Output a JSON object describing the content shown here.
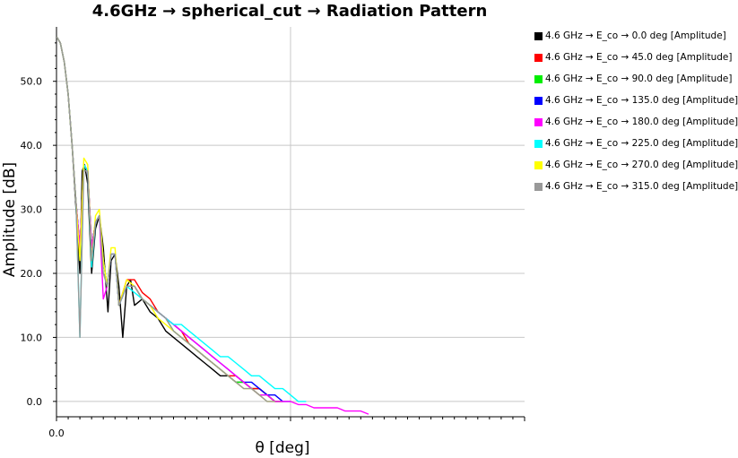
{
  "chart_data": {
    "type": "line",
    "title": "4.6GHz → spherical_cut → Radiation Pattern",
    "xlabel": "θ [deg]",
    "ylabel": "Amplitude [dB]",
    "x_ticks": [
      "0.0"
    ],
    "y_ticks": [
      "0.0",
      "10.0",
      "20.0",
      "30.0",
      "40.0",
      "50.0"
    ],
    "y_tick_values": [
      0,
      10,
      20,
      30,
      40,
      50
    ],
    "ylim": [
      -2.4,
      58.5
    ],
    "xlim": [
      0,
      60
    ],
    "grid": true,
    "legend_position": "right",
    "series": [
      {
        "name": "4.6 GHz → E_co → 0.0 deg [Amplitude]",
        "color": "#000000",
        "x": [
          0,
          0.5,
          1,
          1.5,
          2,
          2.5,
          3,
          3.3,
          3.6,
          4,
          4.5,
          5,
          5.5,
          6,
          6.6,
          7,
          7.5,
          8,
          8.5,
          9,
          9.5,
          10,
          11,
          12,
          13,
          14,
          15,
          16,
          17,
          18,
          19,
          20,
          21,
          22,
          23,
          24,
          25,
          26,
          27,
          28
        ],
        "y": [
          57,
          56,
          53,
          48,
          40,
          30,
          20,
          36,
          37,
          34,
          20,
          27,
          29,
          24,
          14,
          22,
          23,
          18,
          10,
          18,
          19,
          15,
          16,
          14,
          13,
          11,
          10,
          9,
          8,
          7,
          6,
          5,
          4,
          4,
          3,
          3,
          2,
          2,
          1,
          0
        ]
      },
      {
        "name": "4.6 GHz → E_co → 45.0 deg [Amplitude]",
        "color": "#ff0000",
        "x": [
          0,
          0.5,
          1,
          1.5,
          2,
          2.5,
          3,
          3.5,
          4,
          4.5,
          5,
          5.5,
          6,
          6.5,
          7,
          7.5,
          8,
          9,
          10,
          11,
          12,
          13,
          14,
          15,
          16,
          17,
          18,
          19,
          20,
          21,
          22,
          23,
          24,
          25,
          26,
          27,
          28,
          29
        ],
        "y": [
          57,
          56,
          53,
          48,
          40,
          31,
          24,
          37,
          36,
          24,
          28,
          29,
          22,
          18,
          23,
          23,
          15,
          19,
          19,
          17,
          16,
          14,
          13,
          12,
          11,
          9,
          8,
          7,
          6,
          5,
          4,
          4,
          3,
          2,
          2,
          1,
          0,
          0
        ]
      },
      {
        "name": "4.6 GHz → E_co → 90.0 deg [Amplitude]",
        "color": "#00ee00",
        "x": [
          0,
          0.5,
          1,
          1.5,
          2,
          2.5,
          3,
          3.5,
          4,
          4.5,
          5,
          5.5,
          6,
          6.5,
          7,
          7.5,
          8,
          9,
          10,
          11,
          12,
          13,
          14,
          15,
          16,
          17,
          18,
          19,
          20,
          21,
          22,
          23,
          24,
          25,
          26,
          27,
          28,
          29
        ],
        "y": [
          57,
          56,
          53,
          48,
          40,
          31,
          24,
          37,
          36,
          24,
          28,
          29,
          22,
          18,
          23,
          23,
          15,
          18,
          18,
          16,
          15,
          14,
          13,
          11,
          10,
          9,
          8,
          7,
          6,
          5,
          4,
          3,
          3,
          2,
          1,
          1,
          0,
          0
        ]
      },
      {
        "name": "4.6 GHz → E_co → 135.0 deg [Amplitude]",
        "color": "#0000ff",
        "x": [
          0,
          0.5,
          1,
          1.5,
          2,
          2.5,
          3,
          3.5,
          4,
          4.5,
          5,
          5.5,
          6,
          6.5,
          7,
          7.5,
          8,
          9,
          10,
          11,
          12,
          13,
          14,
          15,
          16,
          17,
          18,
          19,
          20,
          21,
          22,
          23,
          24,
          25,
          26,
          27,
          28,
          29,
          30
        ],
        "y": [
          57,
          56,
          53,
          48,
          40,
          31,
          24,
          37,
          36,
          24,
          28,
          29,
          22,
          18,
          23,
          23,
          15,
          18,
          18,
          16,
          15,
          14,
          13,
          12,
          11,
          10,
          9,
          8,
          7,
          6,
          5,
          4,
          3,
          3,
          2,
          1,
          1,
          0,
          0
        ]
      },
      {
        "name": "4.6 GHz → E_co → 180.0 deg [Amplitude]",
        "color": "#ff00ff",
        "x": [
          0,
          0.5,
          1,
          1.5,
          2,
          2.5,
          3,
          3.5,
          4,
          4.5,
          5,
          5.5,
          6,
          6.5,
          7,
          7.5,
          8,
          9,
          10,
          11,
          12,
          13,
          14,
          15,
          16,
          17,
          18,
          19,
          20,
          21,
          22,
          23,
          24,
          25,
          26,
          27,
          28,
          29,
          30,
          31,
          32,
          33,
          34,
          35,
          36,
          37,
          38,
          39,
          40
        ],
        "y": [
          57,
          56,
          53,
          48,
          40,
          31,
          24,
          37,
          36,
          24,
          28,
          29,
          16,
          18,
          23,
          23,
          15,
          18,
          18,
          16,
          15,
          14,
          13,
          12,
          11,
          10,
          9,
          8,
          7,
          6,
          5,
          4,
          3,
          2,
          1,
          1,
          0,
          0,
          0,
          -0.5,
          -0.5,
          -1,
          -1,
          -1,
          -1,
          -1.5,
          -1.5,
          -1.5,
          -2
        ]
      },
      {
        "name": "4.6 GHz → E_co → 225.0 deg [Amplitude]",
        "color": "#00ffff",
        "x": [
          0,
          0.5,
          1,
          1.5,
          2,
          2.5,
          3,
          3.5,
          4,
          4.5,
          5,
          5.5,
          6,
          6.5,
          7,
          7.5,
          8,
          9,
          10,
          11,
          12,
          13,
          14,
          15,
          16,
          17,
          18,
          19,
          20,
          21,
          22,
          23,
          24,
          25,
          26,
          27,
          28,
          29,
          30,
          31,
          32
        ],
        "y": [
          57,
          56,
          53,
          48,
          40,
          31,
          10,
          37,
          36,
          21,
          28,
          29,
          22,
          18,
          23,
          23,
          15,
          18,
          17,
          16,
          15,
          14,
          13,
          12,
          12,
          11,
          10,
          9,
          8,
          7,
          7,
          6,
          5,
          4,
          4,
          3,
          2,
          2,
          1,
          0,
          0
        ]
      },
      {
        "name": "4.6 GHz → E_co → 270.0 deg [Amplitude]",
        "color": "#ffff00",
        "x": [
          0,
          0.5,
          1,
          1.5,
          2,
          2.5,
          3,
          3.5,
          4,
          4.5,
          5,
          5.5,
          6,
          6.5,
          7,
          7.5,
          8,
          9,
          10,
          11,
          12,
          13,
          14,
          15,
          16,
          17,
          18,
          19,
          20,
          21,
          22,
          23,
          24,
          25,
          26,
          27,
          28
        ],
        "y": [
          57,
          56,
          53,
          48,
          40,
          31,
          22,
          38,
          37,
          22,
          29,
          30,
          22,
          18,
          24,
          24,
          15,
          19,
          18,
          16,
          15,
          13,
          12,
          11,
          10,
          9,
          8,
          7,
          6,
          5,
          4,
          3,
          2,
          2,
          1,
          0,
          0
        ]
      },
      {
        "name": "4.6 GHz → E_co → 315.0 deg [Amplitude]",
        "color": "#999999",
        "x": [
          0,
          0.5,
          1,
          1.5,
          2,
          2.5,
          3,
          3.5,
          4,
          4.5,
          5,
          5.5,
          6,
          6.5,
          7,
          7.5,
          8,
          9,
          10,
          11,
          12,
          13,
          14,
          15,
          16,
          17,
          18,
          19,
          20,
          21,
          22,
          23,
          24,
          25,
          26,
          27,
          28
        ],
        "y": [
          57,
          56,
          53,
          48,
          40,
          31,
          10,
          36,
          36,
          22,
          28,
          29,
          20,
          18,
          23,
          23,
          15,
          18,
          18,
          16,
          15,
          14,
          13,
          11,
          10,
          9,
          8,
          7,
          6,
          5,
          4,
          3,
          2,
          2,
          1,
          0,
          0
        ]
      }
    ]
  }
}
